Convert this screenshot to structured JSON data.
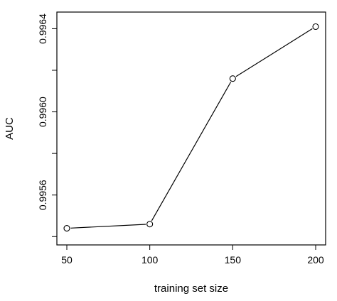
{
  "chart_data": {
    "type": "line",
    "x": [
      50,
      100,
      150,
      200
    ],
    "series": [
      {
        "values": [
          0.99544,
          0.99546,
          0.99616,
          0.99641
        ]
      }
    ],
    "xlabel": "training set size",
    "ylabel": "AUC",
    "xticks": [
      "50",
      "100",
      "150",
      "200"
    ],
    "yticks": [
      "0.9956",
      "0.9960",
      "0.9964"
    ],
    "xlim": [
      44,
      206
    ],
    "ylim": [
      0.99536,
      0.99648
    ],
    "marker": "open-circle",
    "grid": false,
    "legend": "none",
    "colors": {
      "line": "#000000",
      "frame": "#000000"
    }
  }
}
